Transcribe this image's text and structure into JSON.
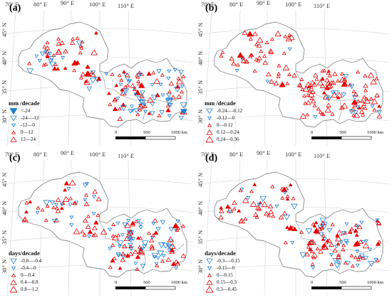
{
  "colors": {
    "increase": "#e60000",
    "decrease": "#1f7fd0",
    "boundary": "#8c8c8c",
    "graticule": "#d6d6d6"
  },
  "scale_bar": {
    "labels": [
      "0",
      "500",
      "1000 km"
    ]
  },
  "panels": [
    {
      "label": "(a)",
      "lon_labels": [
        "70° E",
        "80° E",
        "90° E",
        "100° E",
        "110° E"
      ],
      "lat_labels": [
        "45° N",
        "40° N",
        "35° N",
        "30° N"
      ],
      "legend": {
        "title": "mm /decade",
        "entries": [
          {
            "label": "<-24",
            "kind": "decrease",
            "size": 5,
            "filled": true
          },
          {
            "label": "-24—-12",
            "kind": "decrease",
            "size": 4,
            "filled": false
          },
          {
            "label": "-12—0",
            "kind": "decrease",
            "size": 2.5,
            "filled": false
          },
          {
            "label": "0—12",
            "kind": "increase",
            "size": 2.5,
            "filled": false
          },
          {
            "label": "12—24",
            "kind": "increase",
            "size": 4,
            "filled": false
          }
        ]
      }
    },
    {
      "label": "(b)",
      "lon_labels": [
        "70° E",
        "80° E",
        "90° E",
        "100° E",
        "110° E"
      ],
      "lat_labels": [
        "45° N",
        "40° N",
        "35° N",
        "30° N"
      ],
      "legend": {
        "title": "mm /decade",
        "entries": [
          {
            "label": "-0.24—-0.12",
            "kind": "decrease",
            "size": 4,
            "filled": false
          },
          {
            "label": "-0.12—0",
            "kind": "decrease",
            "size": 2.5,
            "filled": false
          },
          {
            "label": "0—0.12",
            "kind": "increase",
            "size": 2.5,
            "filled": false
          },
          {
            "label": "0.12—0.24",
            "kind": "increase",
            "size": 4,
            "filled": false
          },
          {
            "label": "0.24—0.36",
            "kind": "increase",
            "size": 5,
            "filled": false
          }
        ]
      }
    },
    {
      "label": "(c)",
      "lon_labels": [
        "70° E",
        "80° E",
        "90° E",
        "100° E",
        "110° E"
      ],
      "lat_labels": [
        "45° N",
        "40° N",
        "35° N",
        "30° N"
      ],
      "legend": {
        "title": "days/decade",
        "entries": [
          {
            "label": "-0.8—-0.4",
            "kind": "decrease",
            "size": 4,
            "filled": false
          },
          {
            "label": "-0.4—0",
            "kind": "decrease",
            "size": 2.5,
            "filled": false
          },
          {
            "label": "0—0.4",
            "kind": "increase",
            "size": 2.5,
            "filled": false
          },
          {
            "label": "0.4—0.8",
            "kind": "increase",
            "size": 4,
            "filled": false
          },
          {
            "label": "0.8—1.2",
            "kind": "increase",
            "size": 5,
            "filled": false
          }
        ]
      }
    },
    {
      "label": "(d)",
      "lon_labels": [
        "70° E",
        "80° E",
        "90° E",
        "100° E",
        "110° E"
      ],
      "lat_labels": [
        "45° N",
        "40° N",
        "35° N",
        "30° N"
      ],
      "legend": {
        "title": "days/decade",
        "entries": [
          {
            "label": "-0.3—-0.15",
            "kind": "decrease",
            "size": 4,
            "filled": false
          },
          {
            "label": "-0.15—0",
            "kind": "decrease",
            "size": 2.5,
            "filled": false
          },
          {
            "label": "0—0.15",
            "kind": "increase",
            "size": 2.5,
            "filled": false
          },
          {
            "label": "0.15—0.3",
            "kind": "increase",
            "size": 4,
            "filled": false
          },
          {
            "label": "0.3—0.45",
            "kind": "increase",
            "size": 5,
            "filled": false
          }
        ]
      }
    }
  ]
}
